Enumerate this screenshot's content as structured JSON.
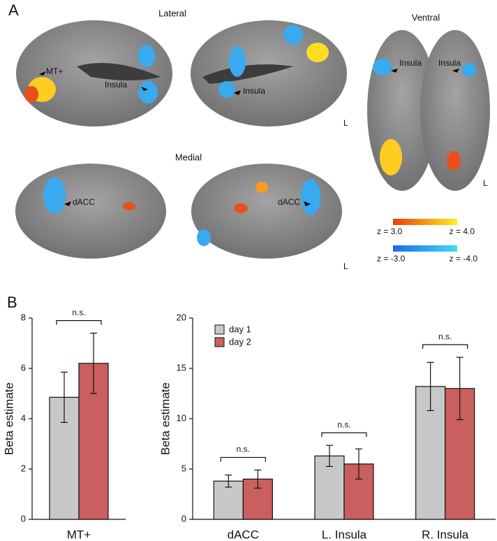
{
  "panel_a": {
    "label": "A",
    "lateral": "Lateral",
    "ventral": "Ventral",
    "medial": "Medial",
    "mt": "MT+",
    "insula_left": "Insula",
    "insula_right": "Insula",
    "insula_ventral_left": "Insula",
    "insula_ventral_right": "Insula",
    "dacc_left": "dACC",
    "dacc_right": "dACC",
    "hemi_lateral": "L",
    "hemi_ventral": "L",
    "hemi_medial": "L",
    "pos_low": "z = 3.0",
    "pos_high": "z = 4.0",
    "neg_low": "z = -3.0",
    "neg_high": "z = -4.0"
  },
  "panel_b_label": "B",
  "chart_data": [
    {
      "type": "bar",
      "ylabel": "Beta estimate",
      "categories": [
        "MT+"
      ],
      "series": [
        {
          "color": "#c8c8c8",
          "values": [
            4.85
          ],
          "errors": [
            1.0
          ]
        },
        {
          "color": "#c95f5f",
          "values": [
            6.2
          ],
          "errors": [
            1.2
          ]
        }
      ],
      "annotations": [
        "n.s."
      ],
      "ylim": [
        0,
        8
      ],
      "yticks": [
        0,
        2,
        4,
        6,
        8
      ]
    },
    {
      "type": "bar",
      "ylabel": "Beta estimate",
      "categories": [
        "dACC",
        "L. Insula",
        "R. Insula"
      ],
      "series": [
        {
          "name": "day 1",
          "color": "#c8c8c8",
          "values": [
            3.8,
            6.3,
            13.2
          ],
          "errors": [
            0.6,
            1.05,
            2.4
          ]
        },
        {
          "name": "day 2",
          "color": "#c95f5f",
          "values": [
            4.0,
            5.5,
            13.0
          ],
          "errors": [
            0.9,
            1.5,
            3.1
          ]
        }
      ],
      "annotations": [
        "n.s.",
        "n.s.",
        "n.s."
      ],
      "ylim": [
        0,
        20
      ],
      "yticks": [
        0,
        5,
        10,
        15,
        20
      ],
      "legend": "upper left"
    }
  ]
}
